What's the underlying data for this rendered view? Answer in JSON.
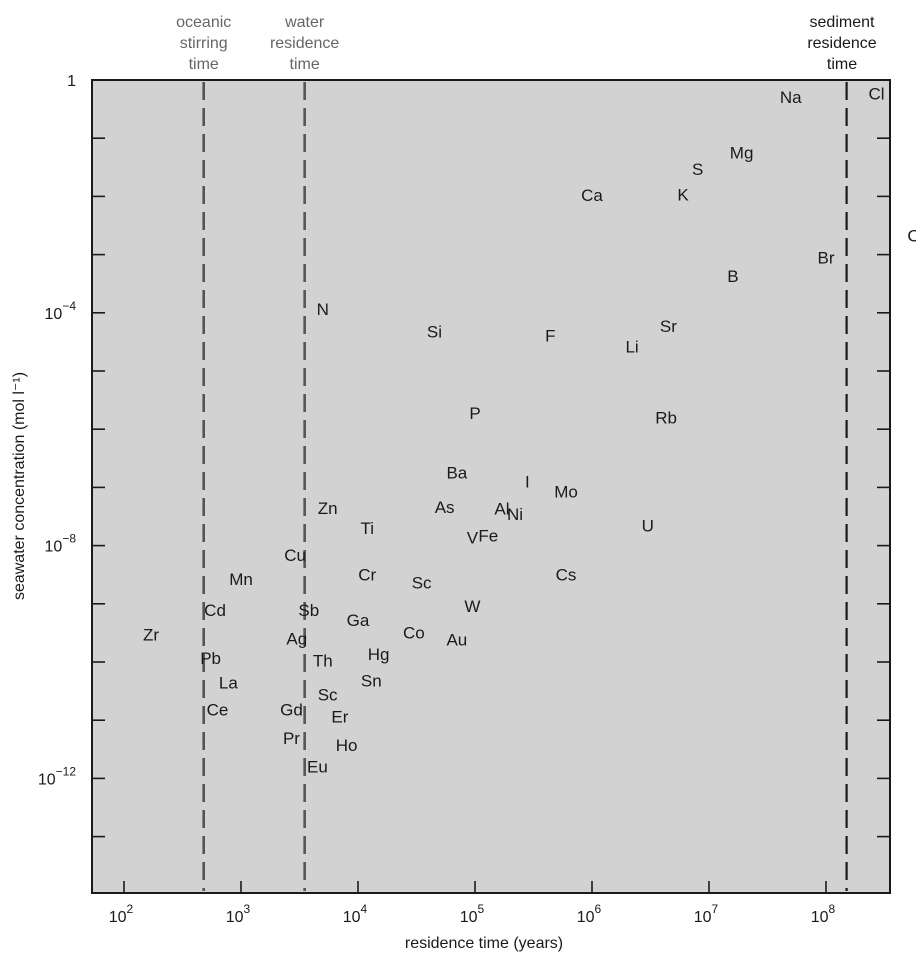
{
  "chart_data": {
    "type": "scatter",
    "title": "",
    "xlabel": "residence time (years)",
    "ylabel": "seawater concentration (mol l⁻¹)",
    "x_scale": "log",
    "y_scale": "log",
    "xlim": [
      50,
      400000000
    ],
    "ylim": [
      1e-15,
      1
    ],
    "x_ticks": [
      {
        "value": 100,
        "label": "10",
        "exp": "2"
      },
      {
        "value": 1000,
        "label": "10",
        "exp": "3"
      },
      {
        "value": 10000,
        "label": "10",
        "exp": "4"
      },
      {
        "value": 100000,
        "label": "10",
        "exp": "5"
      },
      {
        "value": 1000000,
        "label": "10",
        "exp": "6"
      },
      {
        "value": 10000000,
        "label": "10",
        "exp": "7"
      },
      {
        "value": 100000000,
        "label": "10",
        "exp": "8"
      }
    ],
    "y_ticks": [
      {
        "value": 1,
        "label": "1",
        "exp": ""
      },
      {
        "value": 0.0001,
        "label": "10",
        "exp": "−4"
      },
      {
        "value": 1e-08,
        "label": "10",
        "exp": "−8"
      },
      {
        "value": 1e-12,
        "label": "10",
        "exp": "−12"
      }
    ],
    "reference_lines": [
      {
        "lines": [
          "oceanic",
          "stirring",
          "time"
        ],
        "x": 480,
        "style": "dashed-gray"
      },
      {
        "lines": [
          "water",
          "residence",
          "time"
        ],
        "x": 3500,
        "style": "dashed-gray"
      },
      {
        "lines": [
          "sediment",
          "residence",
          "time"
        ],
        "x": 150000000,
        "style": "dashed-black"
      }
    ],
    "points": [
      {
        "label": "Na",
        "x": 50000000,
        "y": 0.48
      },
      {
        "label": "Cl",
        "x": 270000000,
        "y": 0.55
      },
      {
        "label": "Mg",
        "x": 19000000,
        "y": 0.054
      },
      {
        "label": "S",
        "x": 8000000,
        "y": 0.028
      },
      {
        "label": "Ca",
        "x": 1000000,
        "y": 0.01
      },
      {
        "label": "K",
        "x": 6000000,
        "y": 0.0102
      },
      {
        "label": "C",
        "x": 560000000,
        "y": 0.002
      },
      {
        "label": "B",
        "x": 16000000,
        "y": 0.0004
      },
      {
        "label": "Br",
        "x": 100000000,
        "y": 0.00084
      },
      {
        "label": "N",
        "x": 5000,
        "y": 0.00011
      },
      {
        "label": "Si",
        "x": 45000,
        "y": 4.5e-05
      },
      {
        "label": "F",
        "x": 440000,
        "y": 3.8e-05
      },
      {
        "label": "Sr",
        "x": 4500000,
        "y": 5.6e-05
      },
      {
        "label": "Li",
        "x": 2200000,
        "y": 2.5e-05
      },
      {
        "label": "P",
        "x": 100000,
        "y": 1.8e-06
      },
      {
        "label": "Rb",
        "x": 4300000,
        "y": 1.5e-06
      },
      {
        "label": "Ba",
        "x": 70000,
        "y": 1.7e-07
      },
      {
        "label": "I",
        "x": 280000,
        "y": 1.2e-07
      },
      {
        "label": "Mo",
        "x": 600000,
        "y": 8e-08
      },
      {
        "label": "Al",
        "x": 170000,
        "y": 4.1e-08
      },
      {
        "label": "Zn",
        "x": 5500,
        "y": 4.2e-08
      },
      {
        "label": "As",
        "x": 55000,
        "y": 4.3e-08
      },
      {
        "label": "Ni",
        "x": 220000,
        "y": 3.3e-08
      },
      {
        "label": "Fe",
        "x": 130000,
        "y": 1.4e-08
      },
      {
        "label": "Ti",
        "x": 12000,
        "y": 1.9e-08
      },
      {
        "label": "U",
        "x": 3000000,
        "y": 2.1e-08
      },
      {
        "label": "V",
        "x": 95000,
        "y": 1.3e-08
      },
      {
        "label": "Cu",
        "x": 2900,
        "y": 6.5e-09
      },
      {
        "label": "Mn",
        "x": 1000,
        "y": 2.5e-09
      },
      {
        "label": "Cr",
        "x": 12000,
        "y": 3e-09
      },
      {
        "label": "Sc",
        "x": 35000,
        "y": 2.2e-09
      },
      {
        "label": "Cs",
        "x": 600000,
        "y": 3e-09
      },
      {
        "label": "Cd",
        "x": 600,
        "y": 7.3e-10
      },
      {
        "label": "Sb",
        "x": 3800,
        "y": 7.3e-10
      },
      {
        "label": "W",
        "x": 95000,
        "y": 8.7e-10
      },
      {
        "label": "Zr",
        "x": 170,
        "y": 2.8e-10
      },
      {
        "label": "Ga",
        "x": 10000,
        "y": 5e-10
      },
      {
        "label": "Ag",
        "x": 3000,
        "y": 2.4e-10
      },
      {
        "label": "Co",
        "x": 30000,
        "y": 3e-10
      },
      {
        "label": "Au",
        "x": 70000,
        "y": 2.3e-10
      },
      {
        "label": "Hg",
        "x": 15000,
        "y": 1.3e-10
      },
      {
        "label": "Pb",
        "x": 550,
        "y": 1.1e-10
      },
      {
        "label": "Th",
        "x": 5000,
        "y": 1e-10
      },
      {
        "label": "La",
        "x": 780,
        "y": 4.2e-11
      },
      {
        "label": "Sn",
        "x": 13000,
        "y": 4.5e-11
      },
      {
        "label": "Sc",
        "x": 5500,
        "y": 2.6e-11
      },
      {
        "label": "Ce",
        "x": 630,
        "y": 1.45e-11
      },
      {
        "label": "Gd",
        "x": 2700,
        "y": 1.45e-11
      },
      {
        "label": "Er",
        "x": 7000,
        "y": 1.1e-11
      },
      {
        "label": "Pr",
        "x": 2700,
        "y": 4.7e-12
      },
      {
        "label": "Ho",
        "x": 8000,
        "y": 3.5e-12
      },
      {
        "label": "Eu",
        "x": 4500,
        "y": 1.5e-12
      }
    ]
  }
}
